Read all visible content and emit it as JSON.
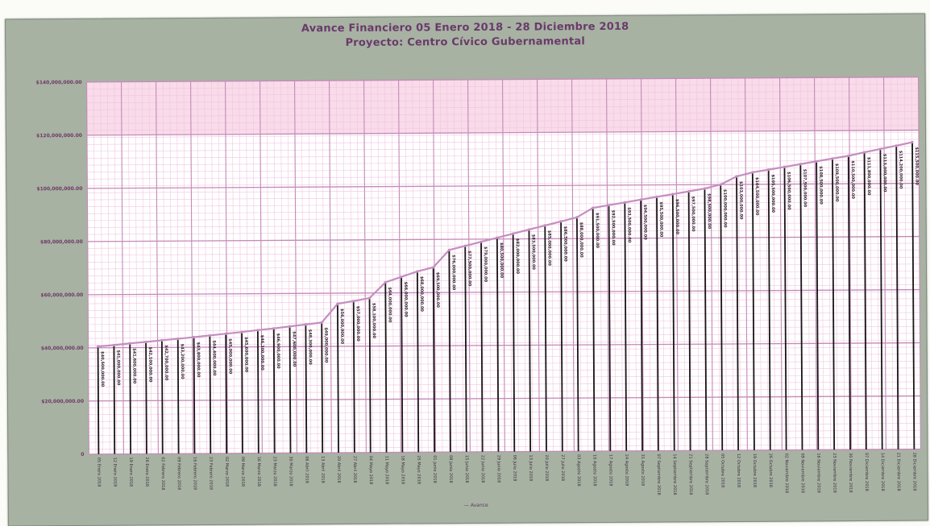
{
  "chart_data": {
    "type": "line",
    "title": "Avance Financiero 05 Enero 2018 - 28 Diciembre 2018",
    "subtitle": "Proyecto: Centro Cívico Gubernamental",
    "xlabel": "— Avance",
    "ylabel": "",
    "yticks": [
      "0",
      "$20,000,000.00",
      "$40,000,000.00",
      "$60,000,000.00",
      "$80,000,000.00",
      "$100,000,000.00",
      "$120,000,000.00",
      "$140,000,000.00"
    ],
    "ylim": [
      0,
      140000000
    ],
    "grid": true,
    "categories": [
      "05 Enero 2018",
      "12 Enero 2018",
      "19 Enero 2018",
      "26 Enero 2018",
      "02 Febrero 2018",
      "09 Febrero 2018",
      "16 Febrero 2018",
      "23 Febrero 2018",
      "02 Marzo 2018",
      "09 Marzo 2018",
      "16 Marzo 2018",
      "23 Marzo 2018",
      "30 Marzo 2018",
      "06 Abril 2018",
      "13 Abril 2018",
      "20 Abril 2018",
      "27 Abril 2018",
      "04 Mayo 2018",
      "11 Mayo 2018",
      "18 Mayo 2018",
      "25 Mayo 2018",
      "01 Junio 2018",
      "08 Junio 2018",
      "15 Junio 2018",
      "22 Junio 2018",
      "29 Junio 2018",
      "06 Julio 2018",
      "13 Julio 2018",
      "20 Julio 2018",
      "27 Julio 2018",
      "03 Agosto 2018",
      "10 Agosto 2018",
      "17 Agosto 2018",
      "24 Agosto 2018",
      "31 Agosto 2018",
      "07 Septiembre 2018",
      "14 Septiembre 2018",
      "21 Septiembre 2018",
      "28 Septiembre 2018",
      "05 Octubre 2018",
      "12 Octubre 2018",
      "19 Octubre 2018",
      "26 Octubre 2018",
      "02 Noviembre 2018",
      "09 Noviembre 2018",
      "16 Noviembre 2018",
      "23 Noviembre 2018",
      "30 Noviembre 2018",
      "07 Diciembre 2018",
      "14 Diciembre 2018",
      "21 Diciembre 2018",
      "28 Diciembre 2018"
    ],
    "series": [
      {
        "name": "Avance",
        "values": [
          40500000,
          41000000,
          41600000,
          42100000,
          42700000,
          43200000,
          43800000,
          44400000,
          45000000,
          45600000,
          46300000,
          46900000,
          47600000,
          48300000,
          49000000,
          56000000,
          57000000,
          58100000,
          64000000,
          66000000,
          68000000,
          69500000,
          76000000,
          77500000,
          79000000,
          80500000,
          82000000,
          83500000,
          85000000,
          86500000,
          88000000,
          91500000,
          92500000,
          93500000,
          94500000,
          95500000,
          96500000,
          97500000,
          98500000,
          100000000,
          103000000,
          104500000,
          105500000,
          106500000,
          107500000,
          108500000,
          109500000,
          110500000,
          111800000,
          113000000,
          114200000,
          115500000
        ]
      }
    ],
    "colors": {
      "line": "#c48ec0",
      "plot_bg": "#ffffff",
      "grid_major": "#c58ab9",
      "grid_minor": "#f0c6df",
      "drop_line": "#1a1418",
      "panel_bg": "#a7b2a3",
      "title": "#6a3a6a",
      "band": "#f7cfe2"
    }
  }
}
